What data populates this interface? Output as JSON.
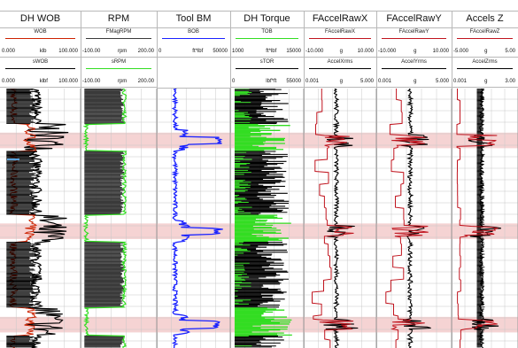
{
  "colors": {
    "grid": "#c8c8c8",
    "highlight": "#f2c4c4",
    "black": "#000000",
    "red": "#cc2200",
    "green": "#33dd22",
    "blue": "#1a22ff",
    "darkgray": "#3a3a3a",
    "crimson": "#c0141e"
  },
  "chart_data": {
    "type": "line",
    "title": "",
    "xlabel": "",
    "ylabel": "",
    "tracks": [
      {
        "title": "DH WOB",
        "curves": [
          {
            "name": "WOB",
            "color": "#cc2200",
            "min_label": "0.000",
            "unit": "klb",
            "max_label": "100.000"
          },
          {
            "name": "sWOB",
            "color": "#000000",
            "min_label": "0.000",
            "unit": "klbf",
            "max_label": "100.000"
          }
        ]
      },
      {
        "title": "RPM",
        "curves": [
          {
            "name": "FMagRPM",
            "color": "#3a3a3a",
            "min_label": "-100.00",
            "unit": "rpm",
            "max_label": "200.00"
          },
          {
            "name": "sRPM",
            "color": "#33dd22",
            "min_label": "-100.00",
            "unit": "rpm",
            "max_label": "200.00"
          }
        ]
      },
      {
        "title": "Tool BM",
        "curves": [
          {
            "name": "BOB",
            "color": "#1a22ff",
            "min_label": "0",
            "unit": "ft*lbf",
            "max_label": "50000"
          }
        ]
      },
      {
        "title": "DH Torque",
        "curves": [
          {
            "name": "TOB",
            "color": "#33dd22",
            "min_label": "1000",
            "unit": "ft*lbf",
            "max_label": "15000"
          },
          {
            "name": "sTOR",
            "color": "#000000",
            "min_label": "0",
            "unit": "lbf*ft",
            "max_label": "55000"
          }
        ]
      },
      {
        "title": "FAccelRawX",
        "curves": [
          {
            "name": "FAccelRawX",
            "color": "#c0141e",
            "min_label": "-10.000",
            "unit": "g",
            "max_label": "10.000"
          },
          {
            "name": "AccelXrms",
            "color": "#000000",
            "min_label": "0.001",
            "unit": "g",
            "max_label": "5.000"
          }
        ]
      },
      {
        "title": "FAccelRawY",
        "curves": [
          {
            "name": "FAccelRawY",
            "color": "#c0141e",
            "min_label": "-10.000",
            "unit": "g",
            "max_label": "10.000"
          },
          {
            "name": "AccelYrms",
            "color": "#000000",
            "min_label": "0.001",
            "unit": "g",
            "max_label": "5.000"
          }
        ]
      },
      {
        "title": "Accels Z",
        "curves": [
          {
            "name": "FAccelRawZ",
            "color": "#c0141e",
            "min_label": "-5.000",
            "unit": "g",
            "max_label": "5.00"
          },
          {
            "name": "AccelZrms",
            "color": "#000000",
            "min_label": "0.001",
            "unit": "g",
            "max_label": "3.00"
          }
        ]
      }
    ],
    "highlight_bands": [
      {
        "start": 0.17,
        "end": 0.23
      },
      {
        "start": 0.52,
        "end": 0.58
      },
      {
        "start": 0.88,
        "end": 0.94
      }
    ]
  }
}
